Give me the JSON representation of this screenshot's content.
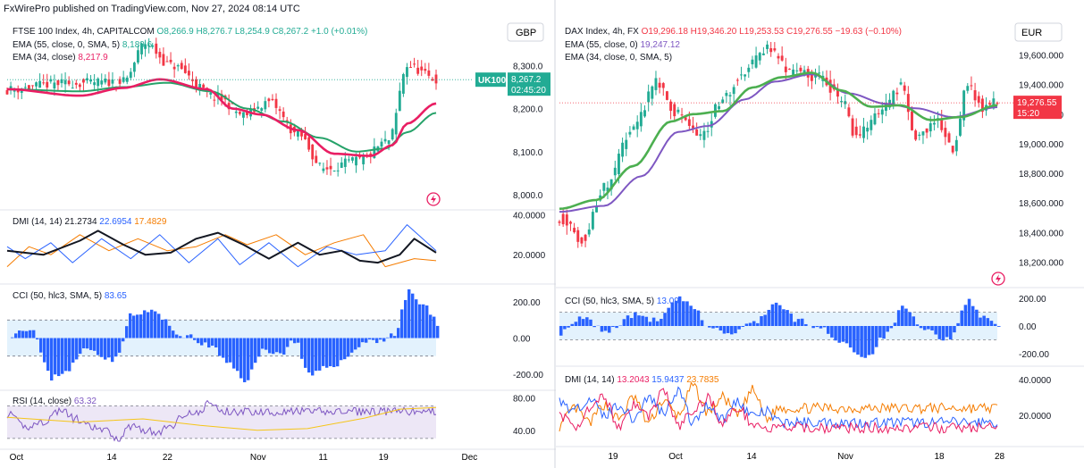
{
  "header": "FxWirePro published on TradingView.com, Nov 27, 2024 08:14 UTC",
  "colors": {
    "red": "#e91e63",
    "green": "#26a269",
    "teal": "#22ab94",
    "bear": "#f23645",
    "blue": "#2962ff",
    "orange": "#f57c00",
    "black": "#131722",
    "purple": "#7e57c2",
    "yellow": "#f5c518",
    "cciBand": "#e3f2fd",
    "rsiBand": "#ede7f6",
    "lightgreen": "#4caf50"
  },
  "left": {
    "currency": "GBP",
    "icon": "lightning-icon",
    "price": {
      "legend": {
        "name": "FTSE 100 Index, 4h, CAPITALCOM",
        "o": "O8,266.9",
        "h": "H8,276.7",
        "l": "L8,254.9",
        "c": "C8,267.2",
        "chg": "+1.0 (+0.01%)"
      },
      "ema1": {
        "label": "EMA (55, close, 0, SMA, 5)",
        "value": "8,189.6"
      },
      "ema2": {
        "label": "EMA (34, close)",
        "value": "8,217.9"
      },
      "ticks": [
        "8,300.0",
        "8,200.0",
        "8,100.0",
        "8,000.0"
      ],
      "tickValues": [
        8300,
        8200,
        8100,
        8000
      ],
      "ylim": [
        7975,
        8390
      ],
      "tag": {
        "symbol": "UK100",
        "value": "8,267.2",
        "time": "02:45:20"
      },
      "last": 8267.2,
      "n": 118,
      "anchors": [
        [
          0,
          8244
        ],
        [
          14,
          8258
        ],
        [
          32,
          8262
        ],
        [
          38,
          8352
        ],
        [
          45,
          8300
        ],
        [
          58,
          8225
        ],
        [
          65,
          8185
        ],
        [
          72,
          8215
        ],
        [
          80,
          8140
        ],
        [
          87,
          8060
        ],
        [
          97,
          8080
        ],
        [
          105,
          8125
        ],
        [
          110,
          8300
        ],
        [
          118,
          8268
        ]
      ],
      "emaFast": [
        [
          0,
          8245
        ],
        [
          20,
          8230
        ],
        [
          32,
          8248
        ],
        [
          42,
          8268
        ],
        [
          55,
          8245
        ],
        [
          62,
          8200
        ],
        [
          70,
          8186
        ],
        [
          80,
          8150
        ],
        [
          90,
          8095
        ],
        [
          100,
          8090
        ],
        [
          106,
          8115
        ],
        [
          110,
          8165
        ],
        [
          118,
          8212
        ]
      ],
      "emaSlow": [
        [
          0,
          8245
        ],
        [
          20,
          8240
        ],
        [
          32,
          8250
        ],
        [
          44,
          8260
        ],
        [
          56,
          8240
        ],
        [
          66,
          8200
        ],
        [
          76,
          8170
        ],
        [
          86,
          8132
        ],
        [
          96,
          8100
        ],
        [
          104,
          8107
        ],
        [
          110,
          8145
        ],
        [
          118,
          8190
        ]
      ]
    },
    "dmi": {
      "legend": {
        "name": "DMI (14, 14)",
        "v1": "21.2734",
        "v2": "22.6954",
        "v3": "17.4829"
      },
      "ticks": [
        "40.0000",
        "20.0000"
      ],
      "tickValues": [
        40,
        20
      ],
      "ylim": [
        8,
        42
      ],
      "adx": [
        [
          0,
          22
        ],
        [
          10,
          20
        ],
        [
          20,
          27
        ],
        [
          25,
          32
        ],
        [
          32,
          25
        ],
        [
          38,
          20
        ],
        [
          45,
          21
        ],
        [
          52,
          28
        ],
        [
          58,
          31
        ],
        [
          65,
          25
        ],
        [
          72,
          18
        ],
        [
          80,
          26
        ],
        [
          86,
          20
        ],
        [
          92,
          22
        ],
        [
          97,
          17
        ],
        [
          102,
          16
        ],
        [
          108,
          20
        ],
        [
          112,
          28
        ],
        [
          118,
          21
        ]
      ],
      "plus": [
        [
          0,
          24
        ],
        [
          5,
          18
        ],
        [
          12,
          26
        ],
        [
          18,
          16
        ],
        [
          26,
          28
        ],
        [
          34,
          18
        ],
        [
          42,
          30
        ],
        [
          50,
          16
        ],
        [
          58,
          28
        ],
        [
          64,
          15
        ],
        [
          72,
          26
        ],
        [
          80,
          14
        ],
        [
          88,
          24
        ],
        [
          96,
          20
        ],
        [
          104,
          22
        ],
        [
          110,
          35
        ],
        [
          118,
          22
        ]
      ],
      "minus": [
        [
          0,
          14
        ],
        [
          6,
          24
        ],
        [
          12,
          20
        ],
        [
          20,
          30
        ],
        [
          28,
          22
        ],
        [
          36,
          28
        ],
        [
          44,
          22
        ],
        [
          52,
          24
        ],
        [
          60,
          30
        ],
        [
          66,
          25
        ],
        [
          74,
          30
        ],
        [
          82,
          20
        ],
        [
          90,
          26
        ],
        [
          98,
          30
        ],
        [
          104,
          14
        ],
        [
          108,
          16
        ],
        [
          112,
          18
        ],
        [
          118,
          17
        ]
      ]
    },
    "cci": {
      "legend": {
        "name": "CCI (50, hlc3, SMA, 5)",
        "value": "83.65"
      },
      "ticks": [
        "200.00",
        "0.00",
        "-200.00"
      ],
      "tickValues": [
        200,
        0,
        -200
      ],
      "band": [
        100,
        -100
      ],
      "ylim": [
        -280,
        290
      ],
      "pts": [
        [
          0,
          20
        ],
        [
          6,
          60
        ],
        [
          12,
          -220
        ],
        [
          16,
          -180
        ],
        [
          22,
          -60
        ],
        [
          30,
          -120
        ],
        [
          34,
          120
        ],
        [
          40,
          150
        ],
        [
          48,
          20
        ],
        [
          56,
          -40
        ],
        [
          62,
          -150
        ],
        [
          66,
          -230
        ],
        [
          72,
          -60
        ],
        [
          76,
          -90
        ],
        [
          80,
          -10
        ],
        [
          84,
          -210
        ],
        [
          92,
          -140
        ],
        [
          100,
          -20
        ],
        [
          104,
          -10
        ],
        [
          108,
          20
        ],
        [
          112,
          260
        ],
        [
          116,
          180
        ],
        [
          120,
          83.65
        ]
      ],
      "n": 120
    },
    "rsi": {
      "legend": {
        "name": "RSI (14, close)",
        "value": "63.32"
      },
      "ticks": [
        "80.00",
        "40.00"
      ],
      "tickValues": [
        80,
        40
      ],
      "band": [
        70,
        30
      ],
      "ylim": [
        20,
        88
      ],
      "pts": [
        [
          0,
          60
        ],
        [
          10,
          44
        ],
        [
          20,
          50
        ],
        [
          30,
          65
        ],
        [
          38,
          54
        ],
        [
          46,
          44
        ],
        [
          54,
          40
        ],
        [
          62,
          30
        ],
        [
          70,
          46
        ],
        [
          78,
          40
        ],
        [
          84,
          36
        ],
        [
          92,
          46
        ],
        [
          100,
          62
        ],
        [
          108,
          60
        ],
        [
          112,
          74
        ],
        [
          116,
          70
        ],
        [
          120,
          63
        ]
      ],
      "ma": [
        [
          0,
          56
        ],
        [
          20,
          50
        ],
        [
          38,
          54
        ],
        [
          54,
          46
        ],
        [
          70,
          40
        ],
        [
          84,
          42
        ],
        [
          100,
          55
        ],
        [
          110,
          66
        ],
        [
          120,
          68
        ]
      ]
    },
    "xticks": [
      "Oct",
      "14",
      "22",
      "Nov",
      "11",
      "19",
      "Dec"
    ],
    "xtickPos": [
      0.02,
      0.225,
      0.345,
      0.54,
      0.68,
      0.81,
      0.995
    ]
  },
  "right": {
    "currency": "EUR",
    "icon": "lightning-icon",
    "price": {
      "legend": {
        "name": "DAX Index, 4h, FX",
        "o": "O19,296.18",
        "h": "H19,346.20",
        "l": "L19,253.53",
        "c": "C19,276.55",
        "chg": "−19.63 (−0.10%)"
      },
      "ema1": {
        "label": "EMA (55, close, 0)",
        "value": "19,247.12"
      },
      "ema2": {
        "label": "EMA (34, close, 0, SMA, 5)",
        "value": ""
      },
      "ticks": [
        "19,600.000",
        "19,400.000",
        "19,200.000",
        "19,000.000",
        "18,800.000",
        "18,600.000",
        "18,400.000",
        "18,200.000"
      ],
      "tickValues": [
        19600,
        19400,
        19200,
        19000,
        18800,
        18600,
        18400,
        18200
      ],
      "ylim": [
        18100,
        19700
      ],
      "tag": {
        "value": "19,276.55",
        "time": "15:20"
      },
      "last": 19276.55,
      "n": 118,
      "anchors": [
        [
          0,
          18500
        ],
        [
          6,
          18350
        ],
        [
          12,
          18700
        ],
        [
          20,
          19100
        ],
        [
          26,
          19420
        ],
        [
          32,
          19200
        ],
        [
          38,
          19050
        ],
        [
          44,
          19300
        ],
        [
          50,
          19500
        ],
        [
          56,
          19640
        ],
        [
          62,
          19500
        ],
        [
          70,
          19450
        ],
        [
          76,
          19300
        ],
        [
          80,
          19050
        ],
        [
          86,
          19200
        ],
        [
          92,
          19380
        ],
        [
          96,
          19050
        ],
        [
          102,
          19150
        ],
        [
          106,
          18950
        ],
        [
          110,
          19400
        ],
        [
          114,
          19250
        ],
        [
          118,
          19277
        ]
      ],
      "emaFast": [
        [
          0,
          18560
        ],
        [
          10,
          18620
        ],
        [
          20,
          18850
        ],
        [
          30,
          19150
        ],
        [
          36,
          19200
        ],
        [
          44,
          19220
        ],
        [
          52,
          19380
        ],
        [
          60,
          19450
        ],
        [
          68,
          19480
        ],
        [
          76,
          19360
        ],
        [
          84,
          19250
        ],
        [
          92,
          19260
        ],
        [
          100,
          19160
        ],
        [
          108,
          19180
        ],
        [
          118,
          19260
        ]
      ],
      "emaSlow": [
        [
          0,
          18540
        ],
        [
          12,
          18580
        ],
        [
          22,
          18780
        ],
        [
          32,
          19080
        ],
        [
          40,
          19120
        ],
        [
          50,
          19300
        ],
        [
          58,
          19420
        ],
        [
          68,
          19470
        ],
        [
          78,
          19340
        ],
        [
          88,
          19270
        ],
        [
          96,
          19240
        ],
        [
          106,
          19180
        ],
        [
          118,
          19247
        ]
      ]
    },
    "cci": {
      "legend": {
        "name": "CCI (50, hlc3, SMA, 5)",
        "value": "13.09"
      },
      "ticks": [
        "200.00",
        "0.00",
        "-200.00"
      ],
      "tickValues": [
        200,
        0,
        -200
      ],
      "band": [
        100,
        -100
      ],
      "ylim": [
        -260,
        260
      ],
      "pts": [
        [
          0,
          -50
        ],
        [
          6,
          60
        ],
        [
          12,
          -40
        ],
        [
          20,
          80
        ],
        [
          26,
          40
        ],
        [
          32,
          200
        ],
        [
          36,
          120
        ],
        [
          40,
          -10
        ],
        [
          46,
          -60
        ],
        [
          52,
          30
        ],
        [
          58,
          160
        ],
        [
          64,
          40
        ],
        [
          70,
          -20
        ],
        [
          76,
          -120
        ],
        [
          82,
          -230
        ],
        [
          88,
          -60
        ],
        [
          92,
          130
        ],
        [
          98,
          -30
        ],
        [
          104,
          -100
        ],
        [
          110,
          180
        ],
        [
          114,
          60
        ],
        [
          118,
          13
        ]
      ],
      "n": 118
    },
    "dmi": {
      "legend": {
        "name": "DMI (14, 14)",
        "v1": "13.2043",
        "v2": "15.9437",
        "v3": "23.7835"
      },
      "ticks": [
        "40.0000",
        "20.0000"
      ],
      "tickValues": [
        40,
        20
      ],
      "ylim": [
        5,
        45
      ],
      "adx": [
        [
          0,
          20
        ],
        [
          8,
          14
        ],
        [
          16,
          22
        ],
        [
          24,
          30
        ],
        [
          32,
          14
        ],
        [
          40,
          26
        ],
        [
          48,
          20
        ],
        [
          56,
          34
        ],
        [
          64,
          14
        ],
        [
          72,
          22
        ],
        [
          80,
          30
        ],
        [
          88,
          16
        ],
        [
          96,
          24
        ],
        [
          104,
          16
        ],
        [
          112,
          12
        ],
        [
          118,
          13
        ]
      ],
      "plus": [
        [
          0,
          28
        ],
        [
          8,
          22
        ],
        [
          16,
          30
        ],
        [
          24,
          20
        ],
        [
          32,
          26
        ],
        [
          40,
          18
        ],
        [
          48,
          30
        ],
        [
          56,
          22
        ],
        [
          64,
          34
        ],
        [
          72,
          16
        ],
        [
          80,
          26
        ],
        [
          88,
          18
        ],
        [
          96,
          28
        ],
        [
          104,
          20
        ],
        [
          112,
          22
        ],
        [
          118,
          16
        ]
      ],
      "minus": [
        [
          0,
          14
        ],
        [
          8,
          24
        ],
        [
          16,
          16
        ],
        [
          24,
          26
        ],
        [
          32,
          18
        ],
        [
          40,
          30
        ],
        [
          48,
          16
        ],
        [
          56,
          28
        ],
        [
          64,
          20
        ],
        [
          72,
          36
        ],
        [
          80,
          22
        ],
        [
          88,
          30
        ],
        [
          96,
          20
        ],
        [
          104,
          34
        ],
        [
          112,
          18
        ],
        [
          118,
          24
        ]
      ]
    },
    "xticks": [
      "19",
      "Oct",
      "14",
      "Nov",
      "18",
      "28"
    ],
    "xtickPos": [
      0.12,
      0.26,
      0.43,
      0.64,
      0.85,
      0.985
    ]
  }
}
